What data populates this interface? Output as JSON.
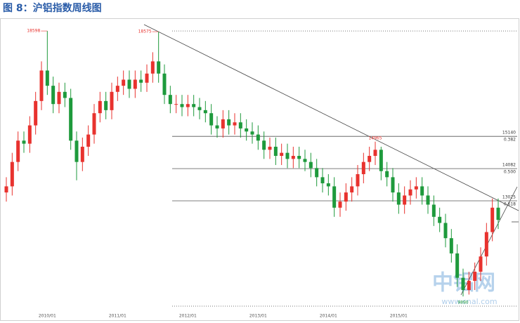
{
  "chart_data": {
    "type": "candlestick",
    "title": "图 8：沪铝指数周线图",
    "categories": [
      null,
      null,
      null,
      null,
      null,
      null,
      null,
      "2010/01",
      null,
      null,
      null,
      null,
      null,
      null,
      null,
      null,
      null,
      null,
      null,
      "2011/01",
      null,
      null,
      null,
      null,
      null,
      null,
      null,
      null,
      null,
      null,
      null,
      "2012/01",
      null,
      null,
      null,
      null,
      null,
      null,
      null,
      null,
      null,
      null,
      null,
      "2013/01",
      null,
      null,
      null,
      null,
      null,
      null,
      null,
      null,
      null,
      null,
      null,
      "2014/01",
      null,
      null,
      null,
      null,
      null,
      null,
      null,
      null,
      null,
      null,
      null,
      "2015/01",
      null,
      null,
      null,
      null,
      null,
      null,
      null,
      null,
      null,
      null,
      null,
      null,
      null,
      null,
      null,
      null,
      null
    ],
    "open": [
      13300,
      13500,
      14300,
      15000,
      14900,
      15500,
      16300,
      17300,
      16800,
      16200,
      16600,
      16400,
      15000,
      14300,
      14800,
      15200,
      15900,
      16300,
      16000,
      16600,
      16800,
      17000,
      16700,
      17000,
      16900,
      17200,
      17600,
      17200,
      16500,
      16200,
      16200,
      16100,
      16200,
      16100,
      16000,
      15900,
      15500,
      15400,
      15700,
      15500,
      15600,
      15400,
      15300,
      15200,
      15000,
      14700,
      14800,
      14500,
      14600,
      14400,
      14500,
      14400,
      14300,
      14100,
      13800,
      13600,
      13500,
      12800,
      13000,
      13300,
      13500,
      13900,
      14300,
      14500,
      14700,
      14000,
      13800,
      13300,
      12900,
      13200,
      13400,
      13500,
      13200,
      12900,
      12500,
      12300,
      11800,
      11300,
      10500,
      10100,
      10400,
      10700,
      11200,
      12000,
      12800
    ],
    "high": [
      13800,
      14600,
      15300,
      15300,
      15800,
      16600,
      17600,
      18598,
      17100,
      16900,
      16900,
      16700,
      15300,
      15100,
      15500,
      16200,
      16600,
      16600,
      16900,
      17100,
      17300,
      17300,
      17300,
      17300,
      17500,
      17900,
      18575,
      17500,
      16800,
      16500,
      16500,
      16500,
      16500,
      16400,
      16300,
      16200,
      15800,
      16000,
      16000,
      15900,
      15900,
      15700,
      15600,
      15500,
      15300,
      15100,
      15100,
      14900,
      14900,
      14800,
      14800,
      14700,
      14600,
      14400,
      14100,
      13900,
      13800,
      13300,
      13600,
      13800,
      14200,
      14600,
      14800,
      14965,
      14800,
      14300,
      14100,
      13600,
      13500,
      13700,
      13800,
      13800,
      13500,
      13200,
      12800,
      12600,
      12100,
      11600,
      10800,
      10700,
      11000,
      11500,
      12300,
      13100,
      13100
    ],
    "low": [
      13000,
      13200,
      14000,
      14600,
      14600,
      15200,
      16000,
      16500,
      15900,
      15900,
      16100,
      14700,
      13700,
      14000,
      14500,
      14900,
      15600,
      15700,
      15700,
      16300,
      16500,
      16400,
      16400,
      16600,
      16600,
      16900,
      16900,
      16200,
      15900,
      15900,
      15800,
      15800,
      15800,
      15700,
      15600,
      15200,
      15100,
      15100,
      15200,
      15200,
      15100,
      15000,
      14900,
      14700,
      14400,
      14400,
      14200,
      14200,
      14100,
      14100,
      14100,
      14000,
      13800,
      13500,
      13300,
      13200,
      12500,
      12500,
      12700,
      13000,
      13200,
      13600,
      14000,
      14200,
      13700,
      13500,
      13000,
      12600,
      12600,
      12900,
      13100,
      12900,
      12600,
      12200,
      12000,
      11500,
      11000,
      10200,
      9890,
      9950,
      10100,
      10400,
      10900,
      11700,
      12100
    ],
    "close": [
      13500,
      14300,
      15000,
      14900,
      15500,
      16300,
      17300,
      16800,
      16200,
      16600,
      16400,
      15000,
      14300,
      14800,
      15200,
      15900,
      16300,
      16000,
      16600,
      16800,
      17000,
      16700,
      17000,
      16900,
      17200,
      17600,
      17200,
      16500,
      16200,
      16200,
      16100,
      16200,
      16100,
      16000,
      15900,
      15500,
      15400,
      15700,
      15500,
      15600,
      15400,
      15300,
      15200,
      15000,
      14700,
      14800,
      14500,
      14600,
      14400,
      14500,
      14400,
      14300,
      14100,
      13800,
      13600,
      13500,
      12800,
      13000,
      13300,
      13500,
      13900,
      14300,
      14500,
      14700,
      14000,
      13800,
      13300,
      12900,
      13200,
      13400,
      13500,
      13200,
      12900,
      12500,
      12300,
      11800,
      11300,
      10500,
      10100,
      10400,
      10700,
      11200,
      12000,
      12800,
      12400
    ],
    "up_color": "#e8322e",
    "down_color": "#1e9a3c",
    "ylim": [
      9570,
      18600
    ],
    "levels": [
      15140,
      14082,
      13025
    ],
    "level_labels": [
      "0.382",
      "0.500",
      "0.618"
    ],
    "watermark": "中铝网",
    "watermark_url": "www.cnal.com"
  }
}
